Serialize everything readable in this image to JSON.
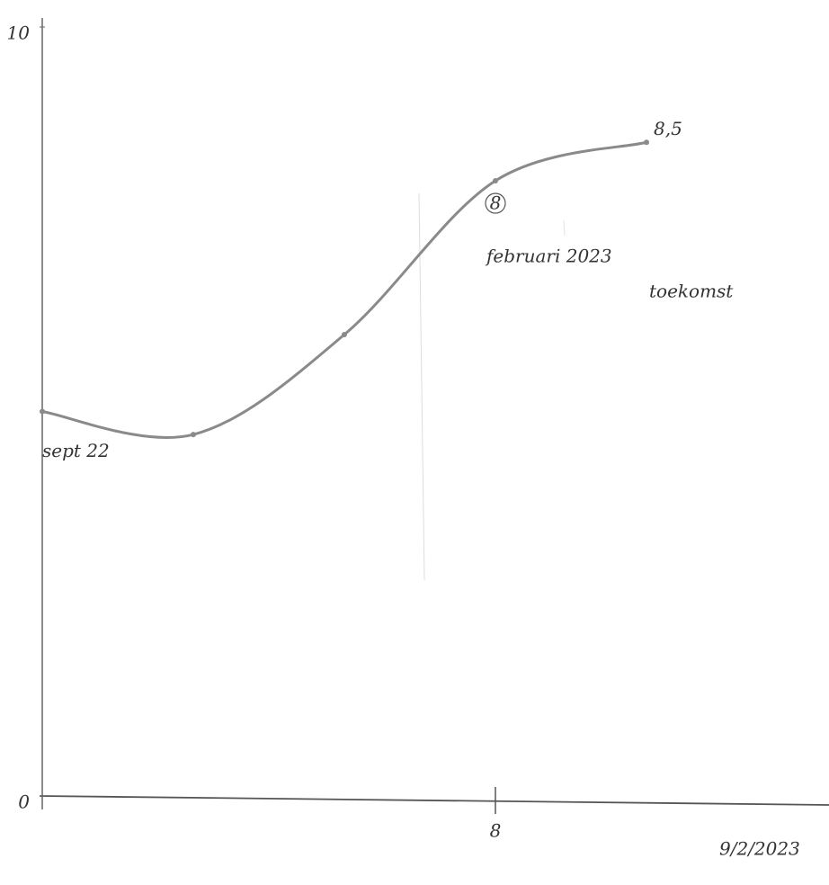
{
  "chart_data": {
    "type": "line",
    "categories": [
      "sept 22",
      null,
      null,
      "februari 2023",
      null
    ],
    "series": [
      {
        "color": "#8a8a8a",
        "values": [
          5,
          4.7,
          6,
          8,
          8.5
        ],
        "value_labels": [
          null,
          null,
          null,
          "8",
          "8,5"
        ]
      }
    ],
    "ylim": [
      0,
      10
    ],
    "yticks": [
      0,
      10
    ],
    "xaxis_labels": [
      "8",
      "9/2/2023"
    ],
    "annotations": [
      "toekomst"
    ]
  }
}
